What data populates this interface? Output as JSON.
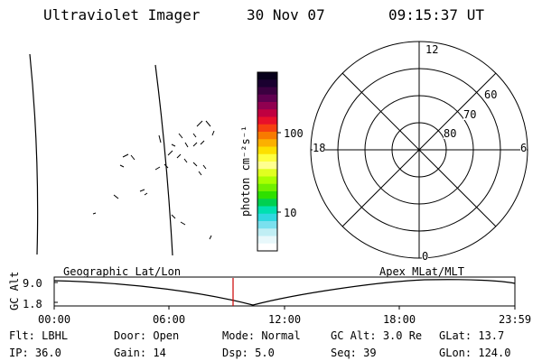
{
  "header": {
    "title": "Ultraviolet Imager",
    "date": "30 Nov 07",
    "time": "09:15:37 UT"
  },
  "colorbar": {
    "unit_label": "photon cm⁻²s⁻¹",
    "tick_labels": [
      "100",
      "10"
    ],
    "colors": [
      "#07001a",
      "#1a0030",
      "#3b0040",
      "#600050",
      "#900050",
      "#c00040",
      "#e8102a",
      "#f64010",
      "#f87a00",
      "#fcb000",
      "#fde000",
      "#fdff40",
      "#ffff90",
      "#e0ff20",
      "#a8ff00",
      "#70f000",
      "#2ee000",
      "#00d050",
      "#00e0b0",
      "#30d8e0",
      "#7ae0ee",
      "#c0eef4",
      "#e8f8fb",
      "#ffffff"
    ]
  },
  "polar_plot": {
    "mlt_labels": [
      "12",
      "18",
      "6",
      "0"
    ],
    "latitude_labels": [
      "60",
      "70",
      "80"
    ]
  },
  "timeline": {
    "left_title": "Geographic Lat/Lon",
    "right_title": "Apex MLat/MLT",
    "y_axis_label": "GC Alt",
    "y_ticks": [
      "9.0",
      "1.8"
    ],
    "x_ticks": [
      "00:00",
      "06:00",
      "12:00",
      "18:00",
      "23:59"
    ],
    "current_marker_color": "#cc0000"
  },
  "info": {
    "row1": [
      {
        "label": "Flt:",
        "value": "LBHL"
      },
      {
        "label": "Door:",
        "value": "Open"
      },
      {
        "label": "Mode:",
        "value": "Normal"
      },
      {
        "label": "GC Alt:",
        "value": "3.0 Re"
      },
      {
        "label": "GLat:",
        "value": "13.7"
      }
    ],
    "row2": [
      {
        "label": "IP:",
        "value": "36.0"
      },
      {
        "label": "Gain:",
        "value": "14"
      },
      {
        "label": "Dsp:",
        "value": "5.0"
      },
      {
        "label": "Seq:",
        "value": "39"
      },
      {
        "label": "GLon:",
        "value": "124.0"
      }
    ]
  }
}
